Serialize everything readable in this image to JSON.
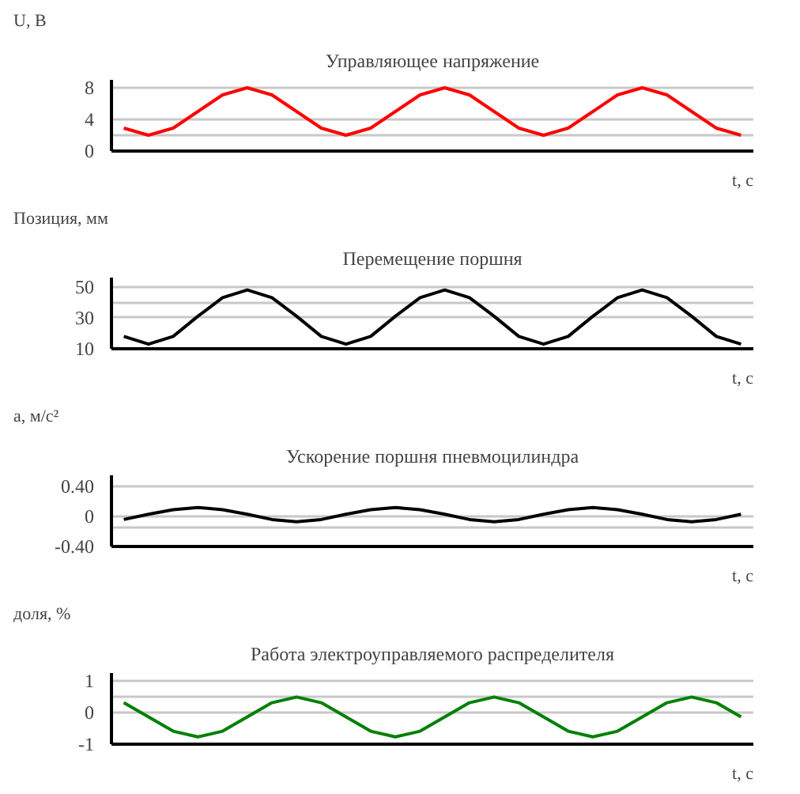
{
  "chart_data": [
    {
      "type": "line",
      "title": "Управляющее напряжение",
      "ylabel": "U, В",
      "xlabel": "t, с",
      "tick_labels": "y",
      "grid": "y",
      "categories": [
        null,
        null,
        null,
        null,
        null,
        null,
        null,
        null,
        null,
        null,
        null,
        null,
        null,
        null,
        null,
        null,
        null,
        null,
        null,
        null,
        null,
        null,
        null,
        null,
        null,
        null
      ],
      "ylim": [
        0,
        9
      ],
      "yticks": [
        0,
        {
          "value": 2,
          "label": null
        },
        4,
        8
      ],
      "series": [
        {
          "color": "#ff0000",
          "values": [
            2.9,
            2,
            2.9,
            5,
            7.1,
            8,
            7.1,
            5,
            2.9,
            2,
            2.9,
            5,
            7.1,
            8,
            7.1,
            5,
            2.9,
            2,
            2.9,
            5,
            7.1,
            8,
            7.1,
            5,
            2.9,
            2
          ]
        }
      ]
    },
    {
      "type": "line",
      "title": "Перемещение поршня",
      "ylabel": "Позиция, мм",
      "xlabel": "t, с",
      "tick_labels": "y",
      "grid": "y",
      "categories": [
        null,
        null,
        null,
        null,
        null,
        null,
        null,
        null,
        null,
        null,
        null,
        null,
        null,
        null,
        null,
        null,
        null,
        null,
        null,
        null,
        null,
        null,
        null,
        null,
        null,
        null
      ],
      "ylim": [
        10,
        56
      ],
      "yticks": [
        10,
        30,
        {
          "value": 40,
          "label": null
        },
        50
      ],
      "series": [
        {
          "color": "#000000",
          "values": [
            18,
            13,
            18,
            31,
            43,
            48,
            43,
            31,
            18,
            13,
            18,
            31,
            43,
            48,
            43,
            31,
            18,
            13,
            18,
            31,
            43,
            48,
            43,
            31,
            18,
            13
          ]
        }
      ]
    },
    {
      "type": "line",
      "title": "Ускорение поршня пневмоцилиндра",
      "ylabel": "a, м/с²",
      "xlabel": "t, с",
      "tick_labels": "y",
      "grid": "y",
      "categories": [
        null,
        null,
        null,
        null,
        null,
        null,
        null,
        null,
        null,
        null,
        null,
        null,
        null,
        null,
        null,
        null,
        null,
        null,
        null,
        null,
        null,
        null,
        null,
        null,
        null,
        null
      ],
      "ylim": [
        -0.4,
        0.55
      ],
      "yticks": [
        {
          "value": -0.4,
          "label": "-0.40"
        },
        {
          "value": -0.15,
          "label": null
        },
        0,
        {
          "value": 0.4,
          "label": "0.40"
        }
      ],
      "series": [
        {
          "color": "#000000",
          "values": [
            -0.04,
            0.03,
            0.09,
            0.12,
            0.09,
            0.03,
            -0.04,
            -0.07,
            -0.04,
            0.03,
            0.09,
            0.12,
            0.09,
            0.03,
            -0.04,
            -0.07,
            -0.04,
            0.03,
            0.09,
            0.12,
            0.09,
            0.03,
            -0.04,
            -0.07,
            -0.04,
            0.03
          ]
        }
      ]
    },
    {
      "type": "line",
      "title": "Работа электроуправляемого распределителя",
      "ylabel": "доля, %",
      "xlabel": "t, с",
      "tick_labels": "y",
      "grid": "y",
      "categories": [
        null,
        null,
        null,
        null,
        null,
        null,
        null,
        null,
        null,
        null,
        null,
        null,
        null,
        null,
        null,
        null,
        null,
        null,
        null,
        null,
        null,
        null,
        null,
        null,
        null,
        null
      ],
      "ylim": [
        -1,
        1.25
      ],
      "yticks": [
        -1,
        0,
        {
          "value": 0.5,
          "label": null
        },
        1
      ],
      "series": [
        {
          "color": "#008000",
          "values": [
            0.31,
            -0.14,
            -0.59,
            -0.77,
            -0.59,
            -0.14,
            0.31,
            0.49,
            0.31,
            -0.14,
            -0.59,
            -0.77,
            -0.59,
            -0.14,
            0.31,
            0.49,
            0.31,
            -0.14,
            -0.59,
            -0.77,
            -0.59,
            -0.14,
            0.31,
            0.49,
            0.31,
            -0.14
          ]
        }
      ]
    }
  ]
}
